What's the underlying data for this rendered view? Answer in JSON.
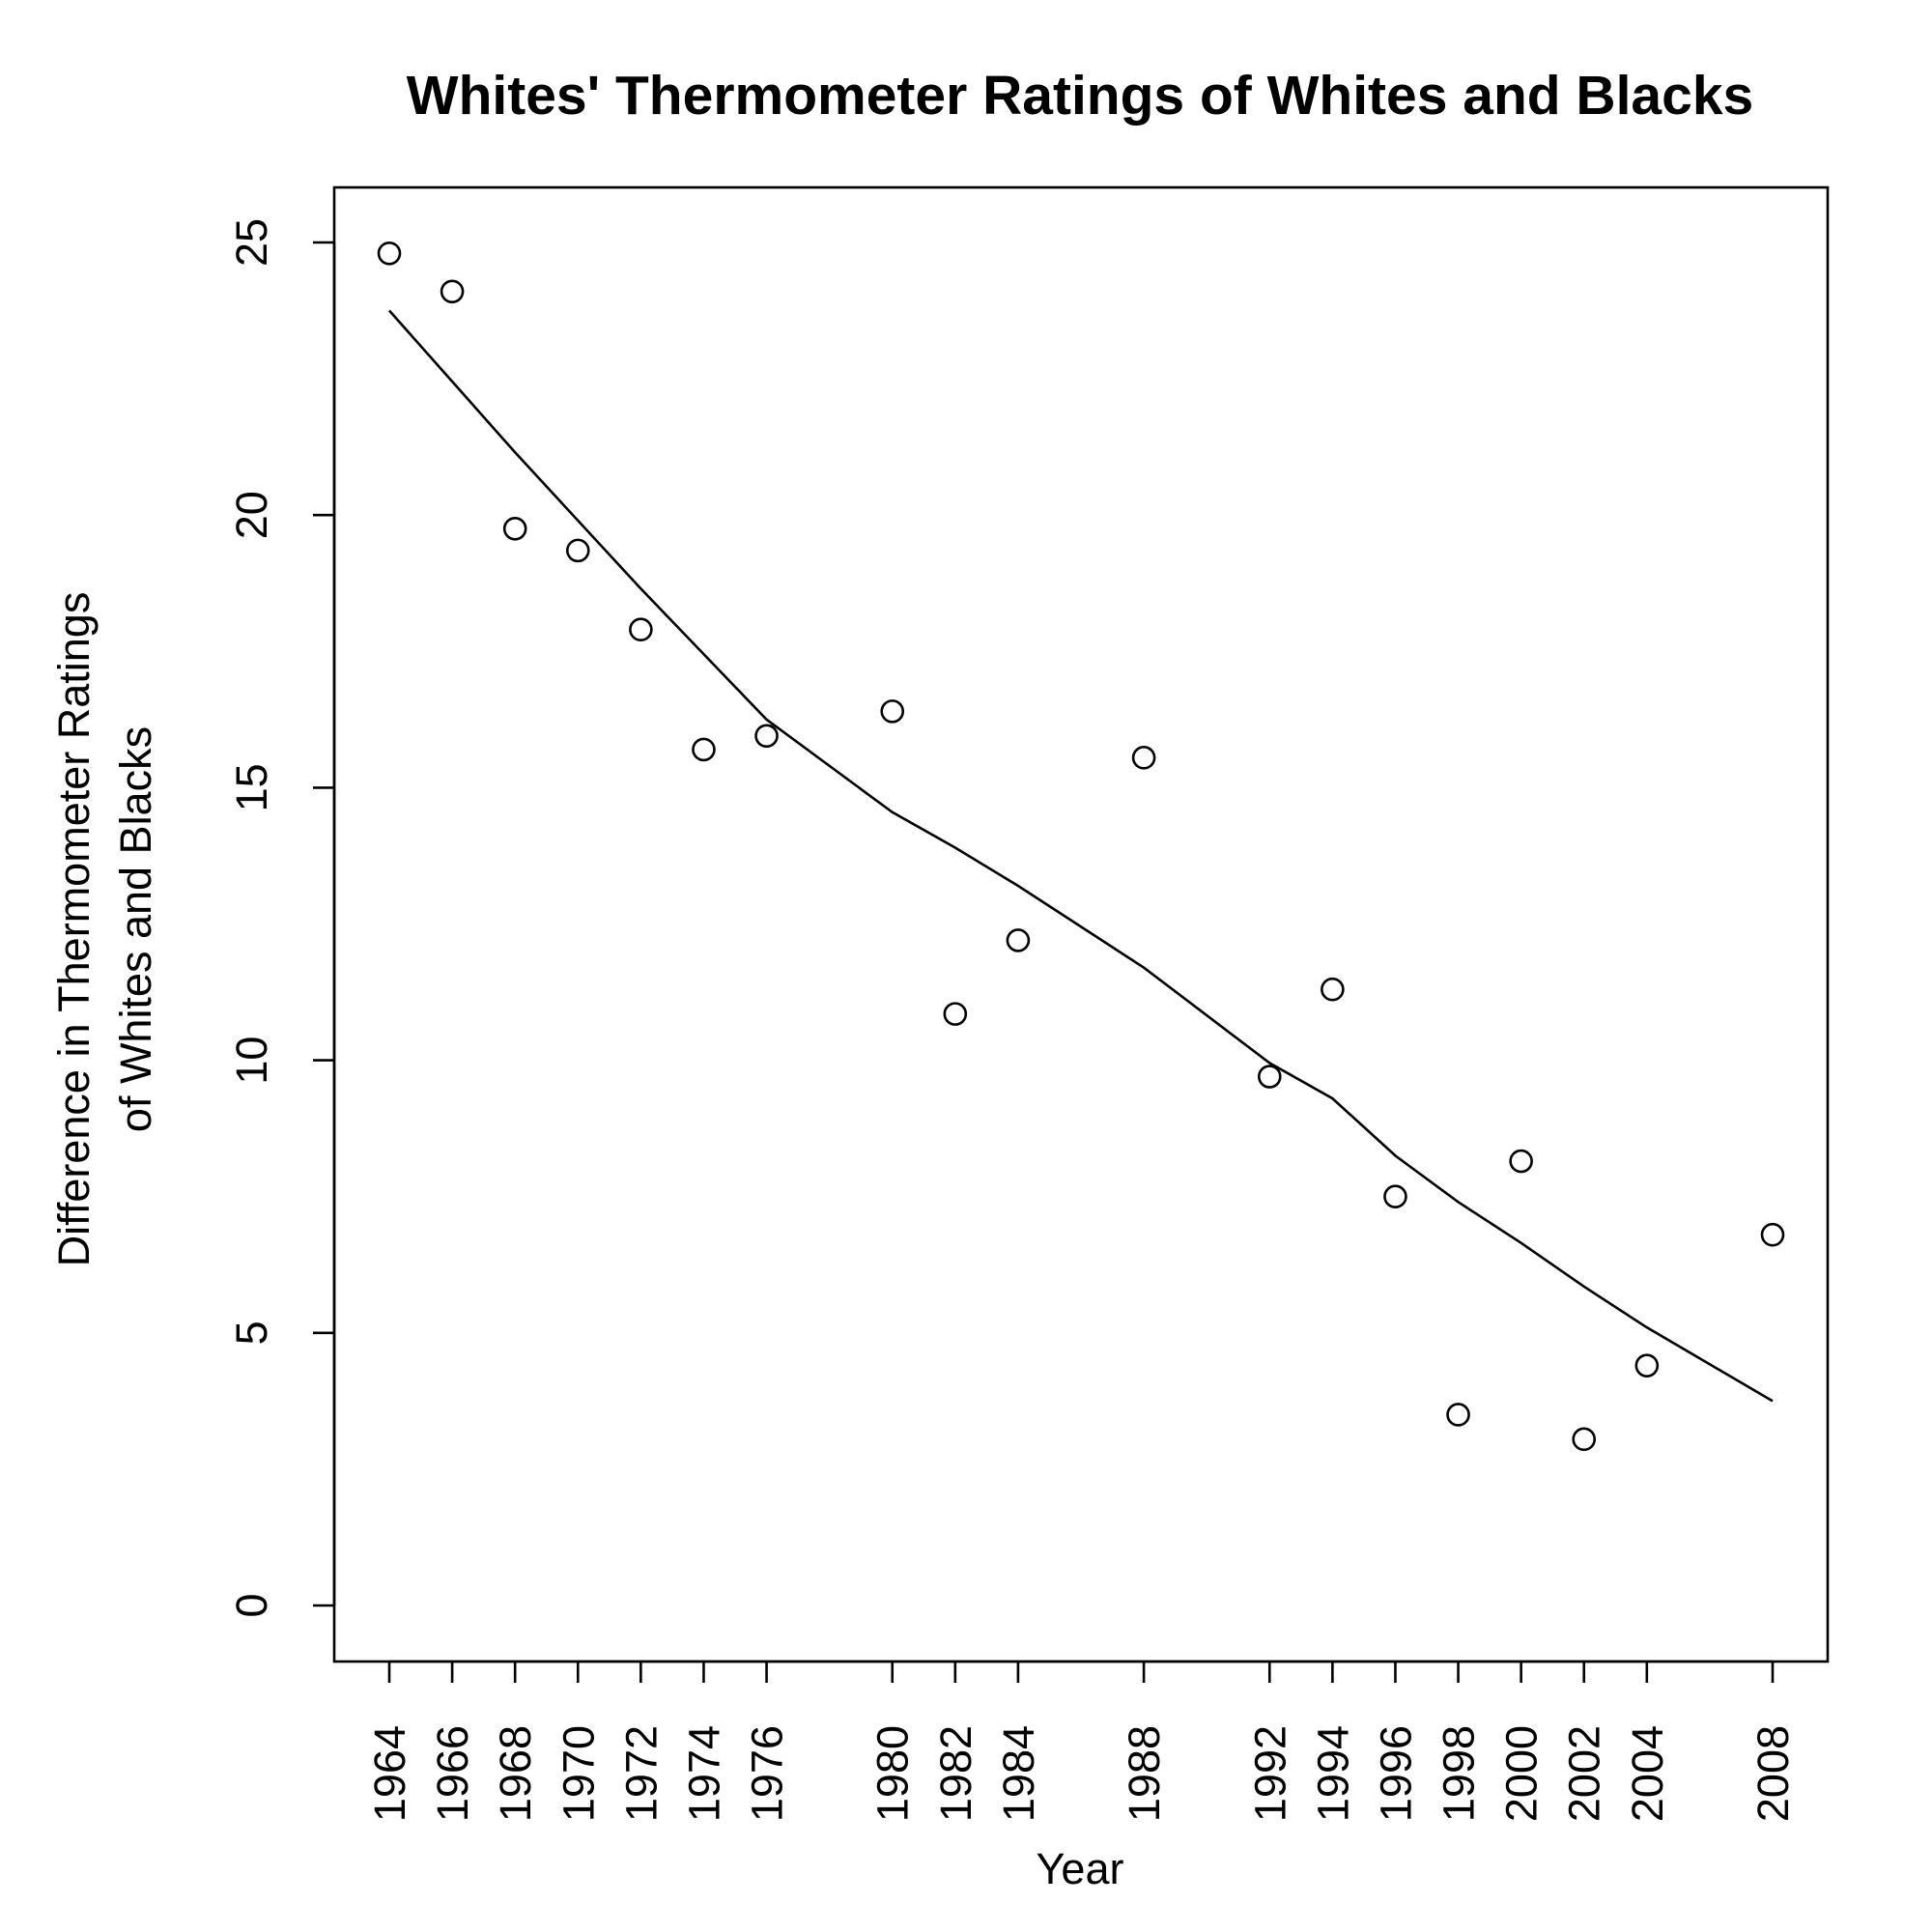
{
  "chart_data": {
    "type": "scatter",
    "title": "Whites' Thermometer Ratings of Whites and Blacks",
    "xlabel": "Year",
    "ylabel": [
      "Difference in Thermometer Ratings",
      "of Whites and Blacks"
    ],
    "xlim": [
      1964,
      2008
    ],
    "ylim": [
      0,
      25
    ],
    "x_ticks": [
      "1964",
      "1966",
      "1968",
      "1970",
      "1972",
      "1974",
      "1976",
      "1980",
      "1982",
      "1984",
      "1988",
      "1992",
      "1994",
      "1996",
      "1998",
      "2000",
      "2002",
      "2004",
      "2008"
    ],
    "y_ticks": [
      "0",
      "5",
      "10",
      "15",
      "20",
      "25"
    ],
    "grid": false,
    "legend": false,
    "series": [
      {
        "kind": "points",
        "x": [
          1964,
          1966,
          1968,
          1970,
          1972,
          1974,
          1976,
          1980,
          1982,
          1984,
          1988,
          1992,
          1994,
          1996,
          1998,
          2000,
          2002,
          2004,
          2008
        ],
        "y": [
          24.8,
          24.1,
          19.75,
          19.35,
          17.9,
          15.7,
          15.95,
          16.4,
          10.85,
          12.2,
          15.55,
          9.7,
          11.3,
          7.5,
          3.5,
          8.15,
          3.05,
          4.4,
          6.8
        ]
      },
      {
        "kind": "line",
        "x": [
          1964,
          1966,
          1968,
          1970,
          1972,
          1974,
          1976,
          1980,
          1982,
          1984,
          1988,
          1992,
          1994,
          1996,
          1998,
          2000,
          2002,
          2004,
          2008
        ],
        "y": [
          23.75,
          22.45,
          21.15,
          19.9,
          18.65,
          17.45,
          16.25,
          14.55,
          13.9,
          13.2,
          11.7,
          9.95,
          9.3,
          8.25,
          7.4,
          6.65,
          5.85,
          5.1,
          3.75
        ]
      }
    ]
  }
}
